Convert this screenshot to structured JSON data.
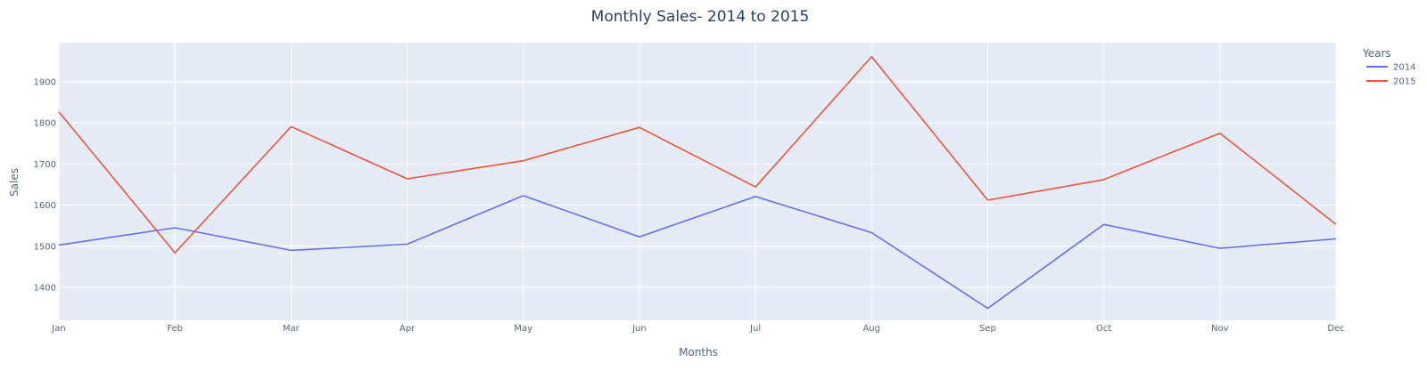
{
  "chart_data": {
    "type": "line",
    "title": "Monthly Sales- 2014 to 2015",
    "xlabel": "Months",
    "ylabel": "Sales",
    "categories": [
      "Jan",
      "Feb",
      "Mar",
      "Apr",
      "May",
      "Jun",
      "Jul",
      "Aug",
      "Sep",
      "Oct",
      "Nov",
      "Dec"
    ],
    "ylim": [
      1320,
      1995
    ],
    "yticks": [
      1400,
      1500,
      1600,
      1700,
      1800,
      1900
    ],
    "grid": true,
    "legend": {
      "title": "Years",
      "placement": "top-right"
    },
    "series": [
      {
        "name": "2014",
        "color": "#636efa",
        "values": [
          1503,
          1545,
          1490,
          1505,
          1623,
          1523,
          1621,
          1533,
          1349,
          1553,
          1495,
          1518
        ]
      },
      {
        "name": "2015",
        "color": "#ef553b",
        "values": [
          1827,
          1484,
          1791,
          1664,
          1708,
          1789,
          1644,
          1961,
          1612,
          1662,
          1775,
          1553
        ]
      }
    ],
    "plot_bg": "#e5ecf6",
    "grid_color": "#ffffff"
  }
}
